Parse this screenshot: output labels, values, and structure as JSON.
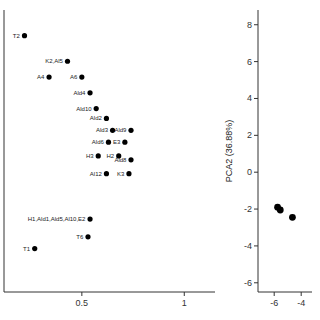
{
  "chart_data": [
    {
      "type": "scatter",
      "x": [
        0.22,
        0.43,
        0.34,
        0.5,
        0.54,
        0.57,
        0.62,
        0.65,
        0.74,
        0.63,
        0.71,
        0.58,
        0.68,
        0.74,
        0.62,
        0.73,
        0.54,
        0.53,
        0.27
      ],
      "values": [
        7.5,
        6.2,
        5.4,
        5.4,
        4.6,
        3.8,
        3.3,
        2.7,
        2.7,
        2.1,
        2.1,
        1.4,
        1.4,
        1.2,
        0.5,
        0.5,
        -1.8,
        -2.7,
        -3.3
      ],
      "annotations": [
        "T2",
        "K2,Al5",
        "A4",
        "A6",
        "Ald4",
        "Ald10",
        "Ald2",
        "Ald3",
        "Ald9",
        "Ald6",
        "E3",
        "H3",
        "H2",
        "Ald8",
        "Al12",
        "K3",
        "H1,Ald1,Ald5,Al10,E2",
        "T6",
        "T1"
      ],
      "color": "black",
      "xlim": [
        0.12,
        1.15
      ],
      "ylim": [
        -5.5,
        8.8
      ],
      "xticks": [
        0.5,
        1
      ],
      "yticks": [],
      "tick_labels": "x",
      "grid": false
    },
    {
      "type": "scatter",
      "x": [
        -5.75,
        -5.55,
        -4.65
      ],
      "values": [
        -1.9,
        -2.05,
        -2.45
      ],
      "color": "black",
      "y_label": "PCA2 (36.88%)",
      "xlim": [
        -7.2,
        -3.2
      ],
      "ylim": [
        -6.5,
        8.8
      ],
      "xticks": [
        -6,
        -4
      ],
      "yticks": [
        -6,
        -4,
        -2,
        0,
        2,
        4,
        6,
        8
      ],
      "grid": false
    }
  ]
}
